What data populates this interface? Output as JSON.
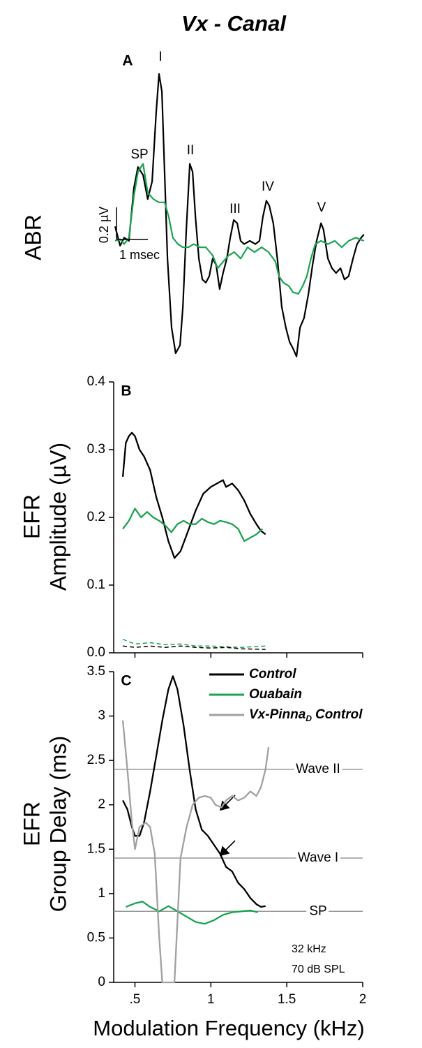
{
  "title": "Vx - Canal",
  "chart_data": [
    {
      "type": "line",
      "panel_label": "A",
      "row_label": [
        "ABR"
      ],
      "xlim": [
        0,
        8
      ],
      "ylim": [
        -0.75,
        1.1
      ],
      "peak_labels": [
        "SP",
        "I",
        "II",
        "III",
        "IV",
        "V"
      ],
      "scale_bar": {
        "y": 0.2,
        "y_label": "0.2 µV",
        "x": 1,
        "x_label": "1 msec"
      },
      "series": [
        {
          "name": "Control",
          "color": "#000000",
          "x": [
            0,
            0.16,
            0.29,
            0.44,
            0.6,
            0.73,
            0.89,
            1.04,
            1.18,
            1.31,
            1.4,
            1.49,
            1.58,
            1.67,
            1.8,
            1.93,
            2.07,
            2.16,
            2.27,
            2.38,
            2.47,
            2.56,
            2.67,
            2.78,
            2.89,
            3.0,
            3.11,
            3.22,
            3.33,
            3.44,
            3.56,
            3.67,
            3.78,
            3.89,
            4.0,
            4.11,
            4.29,
            4.47,
            4.6,
            4.71,
            4.82,
            4.91,
            5.04,
            5.18,
            5.31,
            5.44,
            5.56,
            5.67,
            5.78,
            5.89,
            6.02,
            6.16,
            6.29,
            6.42,
            6.56,
            6.64,
            6.78,
            6.91,
            7.04,
            7.18,
            7.31,
            7.44,
            7.58,
            7.71,
            7.84,
            7.93
          ],
          "values": [
            0.09,
            -0.03,
            0.02,
            0,
            0.33,
            0.46,
            0.41,
            0.26,
            0.37,
            0.8,
            1.04,
            0.93,
            0.41,
            -0.11,
            -0.54,
            -0.7,
            -0.65,
            -0.41,
            0.07,
            0.48,
            0.43,
            0.15,
            -0.11,
            -0.24,
            -0.26,
            -0.22,
            -0.11,
            -0.15,
            -0.3,
            -0.2,
            -0.11,
            0.02,
            0.13,
            0.11,
            0,
            -0.02,
            0,
            -0.02,
            0,
            0.15,
            0.25,
            0.22,
            0.11,
            -0.13,
            -0.41,
            -0.54,
            -0.63,
            -0.67,
            -0.72,
            -0.54,
            -0.48,
            -0.33,
            -0.15,
            0,
            0.11,
            0.07,
            -0.11,
            -0.17,
            -0.2,
            -0.17,
            -0.24,
            -0.22,
            -0.11,
            -0.02,
            0.02,
            0.04
          ]
        },
        {
          "name": "Ouabain",
          "color": "#1aa350",
          "x": [
            0,
            0.16,
            0.29,
            0.44,
            0.6,
            0.73,
            0.89,
            1.04,
            1.22,
            1.4,
            1.58,
            1.71,
            1.84,
            2.0,
            2.16,
            2.33,
            2.51,
            2.69,
            2.89,
            3.11,
            3.27,
            3.44,
            3.62,
            3.8,
            4.0,
            4.22,
            4.44,
            4.67,
            4.89,
            5.11,
            5.22,
            5.36,
            5.53,
            5.67,
            5.84,
            5.98,
            6.11,
            6.24,
            6.38,
            6.56,
            6.78,
            7.0,
            7.22,
            7.44,
            7.67,
            7.93
          ],
          "values": [
            0,
            0.01,
            -0.02,
            0.02,
            0.28,
            0.43,
            0.48,
            0.3,
            0.26,
            0.24,
            0.24,
            0.15,
            0.02,
            -0.02,
            -0.04,
            -0.04,
            -0.02,
            -0.04,
            -0.04,
            -0.09,
            -0.17,
            -0.13,
            -0.09,
            -0.07,
            -0.11,
            -0.04,
            -0.07,
            -0.04,
            -0.07,
            -0.13,
            -0.22,
            -0.26,
            -0.28,
            -0.32,
            -0.33,
            -0.28,
            -0.22,
            -0.11,
            -0.02,
            0,
            -0.02,
            0,
            -0.04,
            0,
            0.02,
            0
          ]
        }
      ]
    },
    {
      "type": "line",
      "panel_label": "B",
      "row_label": [
        "EFR",
        "Amplitude (µV)"
      ],
      "xlim": [
        0.36,
        2
      ],
      "xticks": [
        0.5,
        1,
        1.5,
        2
      ],
      "xtick_labels": false,
      "ylim": [
        0,
        0.4
      ],
      "yticks": [
        {
          "value": 0,
          "label": "0.0"
        },
        0.1,
        0.2,
        0.3,
        0.4
      ],
      "series": [
        {
          "name": "Control",
          "color": "#000000",
          "x": [
            0.42,
            0.44,
            0.46,
            0.48,
            0.5,
            0.53,
            0.56,
            0.6,
            0.64,
            0.68,
            0.72,
            0.76,
            0.8,
            0.85,
            0.9,
            0.95,
            1.0,
            1.04,
            1.08,
            1.1,
            1.14,
            1.18,
            1.22,
            1.26,
            1.3,
            1.33,
            1.36
          ],
          "values": [
            0.26,
            0.31,
            0.32,
            0.325,
            0.32,
            0.3,
            0.29,
            0.27,
            0.23,
            0.2,
            0.165,
            0.14,
            0.15,
            0.18,
            0.21,
            0.235,
            0.245,
            0.25,
            0.255,
            0.245,
            0.25,
            0.24,
            0.225,
            0.205,
            0.19,
            0.18,
            0.175
          ]
        },
        {
          "name": "Ouabain",
          "color": "#1aa350",
          "x": [
            0.42,
            0.46,
            0.5,
            0.54,
            0.58,
            0.62,
            0.66,
            0.7,
            0.74,
            0.78,
            0.82,
            0.86,
            0.9,
            0.94,
            0.98,
            1.02,
            1.06,
            1.1,
            1.14,
            1.18,
            1.22,
            1.26,
            1.3,
            1.34
          ],
          "values": [
            0.183,
            0.195,
            0.213,
            0.2,
            0.208,
            0.2,
            0.195,
            0.188,
            0.178,
            0.19,
            0.195,
            0.19,
            0.19,
            0.198,
            0.193,
            0.19,
            0.195,
            0.193,
            0.19,
            0.183,
            0.165,
            0.17,
            0.175,
            0.183
          ]
        },
        {
          "color": "#1aa350",
          "dashed": true,
          "x": [
            0.42,
            0.5,
            0.6,
            0.7,
            0.8,
            0.9,
            1.0,
            1.1,
            1.2,
            1.36
          ],
          "values": [
            0.02,
            0.013,
            0.015,
            0.012,
            0.013,
            0.01,
            0.01,
            0.009,
            0.008,
            0.01
          ]
        },
        {
          "color": "#000000",
          "dashed": true,
          "x": [
            0.42,
            0.5,
            0.6,
            0.7,
            0.8,
            0.9,
            1.0,
            1.1,
            1.2,
            1.36
          ],
          "values": [
            0.01,
            0.008,
            0.01,
            0.008,
            0.01,
            0.008,
            0.007,
            0.008,
            0.006,
            0.005
          ]
        }
      ]
    },
    {
      "type": "line",
      "panel_label": "C",
      "row_label": [
        "EFR",
        "Group Delay (ms)"
      ],
      "xlabel": "Modulation Frequency (kHz)",
      "xlim": [
        0.36,
        2
      ],
      "xticks": [
        {
          "value": 0.5,
          "label": ".5"
        },
        1,
        1.5,
        2
      ],
      "ylim": [
        0,
        3.5
      ],
      "yticks": [
        0,
        0.5,
        1,
        1.5,
        2,
        2.5,
        3,
        3.5
      ],
      "legend": "top-right",
      "annotations": [
        "32 kHz",
        "70 dB SPL"
      ],
      "reference_lines": [
        {
          "label": "Wave II",
          "value": 2.4
        },
        {
          "label": "Wave I",
          "value": 1.4
        },
        {
          "label": "SP",
          "value": 0.8
        }
      ],
      "series": [
        {
          "name": "Control",
          "color": "#000000",
          "x": [
            0.42,
            0.45,
            0.48,
            0.5,
            0.53,
            0.56,
            0.6,
            0.64,
            0.68,
            0.72,
            0.75,
            0.78,
            0.82,
            0.86,
            0.9,
            0.94,
            0.98,
            1.02,
            1.06,
            1.1,
            1.14,
            1.18,
            1.22,
            1.26,
            1.3,
            1.33,
            1.36
          ],
          "values": [
            2.05,
            1.95,
            1.75,
            1.65,
            1.65,
            1.8,
            2.15,
            2.55,
            2.95,
            3.3,
            3.45,
            3.3,
            2.9,
            2.4,
            1.95,
            1.72,
            1.65,
            1.55,
            1.45,
            1.3,
            1.25,
            1.12,
            1.05,
            0.95,
            0.88,
            0.85,
            0.86
          ]
        },
        {
          "name": "Ouabain",
          "color": "#1aa350",
          "x": [
            0.44,
            0.5,
            0.55,
            0.6,
            0.66,
            0.72,
            0.78,
            0.84,
            0.9,
            0.96,
            1.02,
            1.08,
            1.14,
            1.2,
            1.26,
            1.31
          ],
          "values": [
            0.85,
            0.89,
            0.91,
            0.85,
            0.8,
            0.86,
            0.8,
            0.74,
            0.68,
            0.66,
            0.7,
            0.76,
            0.79,
            0.8,
            0.81,
            0.79
          ]
        },
        {
          "name": "Vx-Pinna",
          "name_sub": "D",
          "name_tail": "Control",
          "color": "#a0a0a0",
          "x": [
            0.42,
            0.45,
            0.48,
            0.5,
            0.53,
            0.57,
            0.6,
            0.63,
            0.66,
            0.68,
            0.72,
            0.76,
            0.8,
            0.84,
            0.88,
            0.92,
            0.96,
            1.0,
            1.03,
            1.07,
            1.1,
            1.14,
            1.18,
            1.22,
            1.26,
            1.3,
            1.33,
            1.36,
            1.38
          ],
          "values": [
            2.95,
            2.4,
            1.8,
            1.5,
            1.75,
            1.8,
            1.75,
            1.45,
            0.5,
            0,
            0,
            0,
            1.4,
            1.75,
            2.0,
            2.08,
            2.1,
            2.08,
            2.0,
            1.97,
            2.05,
            2.1,
            2.05,
            2.08,
            2.15,
            2.1,
            2.2,
            2.4,
            2.65
          ]
        }
      ]
    }
  ]
}
